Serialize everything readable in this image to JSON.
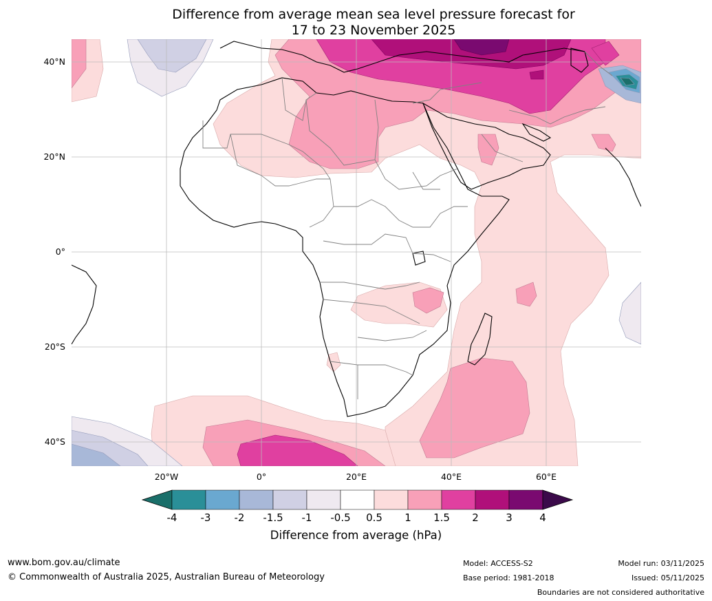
{
  "title": {
    "line1": "Difference from average mean sea level pressure forecast for",
    "line2": "17 to 23 November 2025"
  },
  "map": {
    "lat_labels": [
      "40°N",
      "20°N",
      "0°",
      "20°S",
      "40°S"
    ],
    "lon_labels": [
      "20°W",
      "0°",
      "20°E",
      "40°E",
      "60°E"
    ],
    "region": "Africa",
    "extent": {
      "lon_min": -40,
      "lon_max": 80,
      "lat_min": -45,
      "lat_max": 45
    }
  },
  "legend": {
    "ticks": [
      "-4",
      "-3",
      "-2",
      "-1.5",
      "-1",
      "-0.5",
      "0.5",
      "1",
      "1.5",
      "2",
      "3",
      "4"
    ],
    "colors": [
      "#1a6f6a",
      "#2a8f98",
      "#6aa8d0",
      "#a8b8d8",
      "#d0d0e4",
      "#efe9f0",
      "#ffffff",
      "#fcdcdc",
      "#f8a0b8",
      "#e040a0",
      "#b0107a",
      "#7a0a70",
      "#3b0a4a"
    ],
    "label": "Difference from average (hPa)"
  },
  "footer": {
    "website": "www.bom.gov.au/climate",
    "copyright": "© Commonwealth of Australia 2025, Australian Bureau of Meteorology",
    "model": "Model: ACCESS-S2",
    "base_period": "Base period: 1981-2018",
    "model_run": "Model run: 03/11/2025",
    "issued": "Issued: 05/11/2025",
    "disclaimer": "Boundaries are not considered authoritative"
  }
}
